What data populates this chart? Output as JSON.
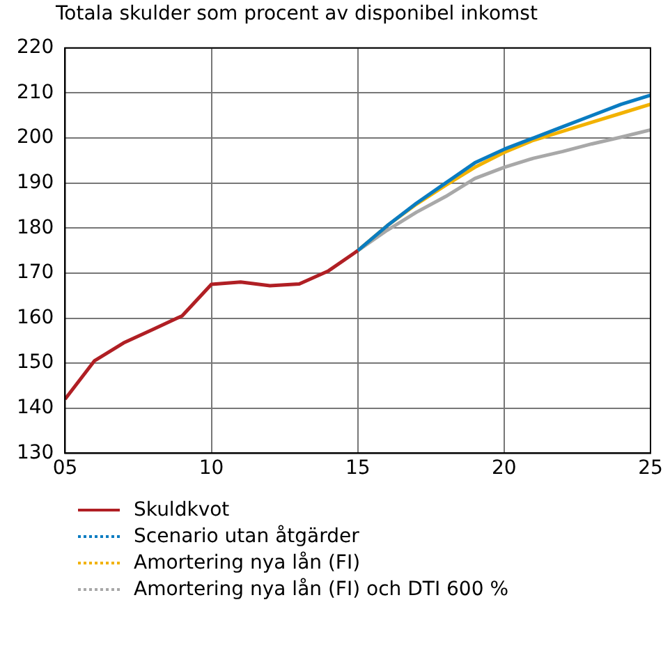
{
  "chart_data": {
    "type": "line",
    "title": "Totala skulder som procent av disponibel inkomst",
    "series": [
      {
        "name": "Skuldkvot",
        "color": "#b01f24",
        "x": [
          2005,
          2006,
          2007,
          2008,
          2009,
          2010,
          2011,
          2012,
          2013,
          2014,
          2015
        ],
        "values": [
          142,
          150.5,
          154.5,
          157.5,
          160.5,
          167.5,
          168,
          167.2,
          167.6,
          170.5,
          175
        ]
      },
      {
        "name": "Scenario utan åtgärder",
        "color": "#0a7cc1",
        "x": [
          2015,
          2016,
          2017,
          2018,
          2019,
          2020,
          2021,
          2022,
          2023,
          2024,
          2025
        ],
        "values": [
          175,
          180.5,
          185.5,
          190,
          194.5,
          197.5,
          200,
          202.5,
          205,
          207.5,
          209.5
        ]
      },
      {
        "name": "Amortering nya lån (FI)",
        "color": "#f2b200",
        "x": [
          2015,
          2016,
          2017,
          2018,
          2019,
          2020,
          2021,
          2022,
          2023,
          2024,
          2025
        ],
        "values": [
          175,
          180.5,
          185.3,
          189.5,
          193.5,
          196.8,
          199.5,
          201.5,
          203.5,
          205.5,
          207.5
        ]
      },
      {
        "name": "Amortering nya lån (FI) och DTI 600 %",
        "color": "#a8a8a8",
        "x": [
          2015,
          2016,
          2017,
          2018,
          2019,
          2020,
          2021,
          2022,
          2023,
          2024,
          2025
        ],
        "values": [
          175,
          179.5,
          183.5,
          187,
          191,
          193.5,
          195.5,
          197,
          198.7,
          200.2,
          201.8
        ]
      }
    ],
    "xlim": [
      2005,
      2025
    ],
    "xticks": [
      {
        "value": 2005,
        "label": "05"
      },
      {
        "value": 2010,
        "label": "10"
      },
      {
        "value": 2015,
        "label": "15"
      },
      {
        "value": 2020,
        "label": "20"
      },
      {
        "value": 2025,
        "label": "25"
      }
    ],
    "ylim": [
      130,
      220
    ],
    "yticks": [
      130,
      140,
      150,
      160,
      170,
      180,
      190,
      200,
      210,
      220
    ],
    "grid": true,
    "legend": "bottom",
    "marker": "none",
    "line_style": "solid"
  }
}
